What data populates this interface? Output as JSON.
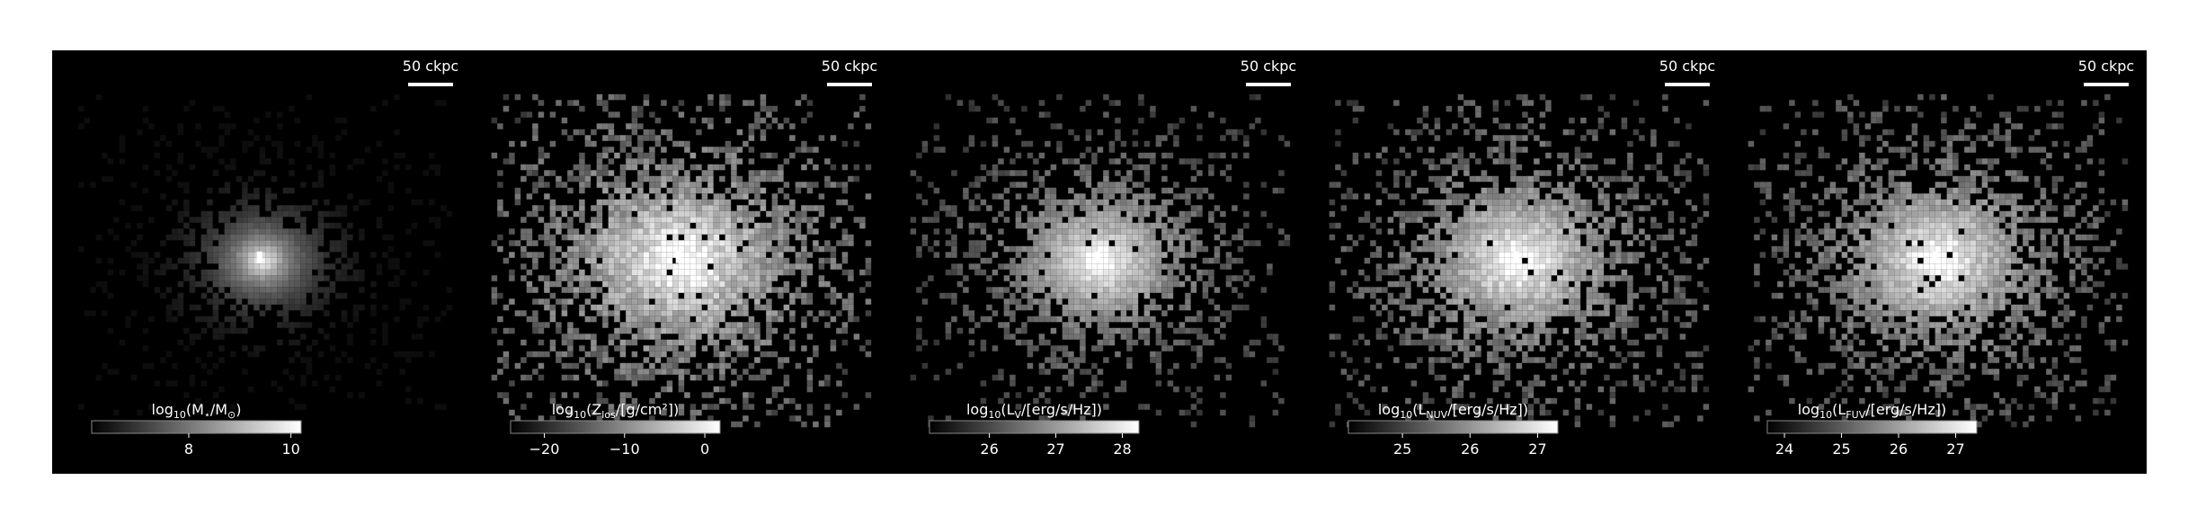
{
  "panels": [
    {
      "scale_label": "50 ckpc",
      "colorbar": {
        "label_parts": [
          "log",
          "10",
          "(M",
          "⋆",
          "/M",
          "⊙",
          ")"
        ],
        "clim": [
          6.1,
          10.2
        ],
        "ticks": [
          8,
          10
        ]
      }
    },
    {
      "scale_label": "50 ckpc",
      "colorbar": {
        "label_parts": [
          "log",
          "10",
          "(Z",
          "los",
          "/[g/cm²])"
        ],
        "clim": [
          -24.2,
          1.9
        ],
        "ticks": [
          {
            "value": -20,
            "label": "−20"
          },
          {
            "value": -10,
            "label": "−10"
          },
          0
        ]
      }
    },
    {
      "scale_label": "50 ckpc",
      "colorbar": {
        "label_parts": [
          "log",
          "10",
          "(L",
          "V",
          "/[erg/s/Hz])"
        ],
        "clim": [
          25.1,
          28.25
        ],
        "ticks": [
          26,
          27,
          28
        ]
      }
    },
    {
      "scale_label": "50 ckpc",
      "colorbar": {
        "label_parts": [
          "log",
          "10",
          "(L",
          "NUV",
          "/[erg/s/Hz])"
        ],
        "clim": [
          24.2,
          27.3
        ],
        "ticks": [
          25,
          26,
          27
        ]
      }
    },
    {
      "scale_label": "50 ckpc",
      "colorbar": {
        "label_parts": [
          "log",
          "10",
          "(L",
          "FUV",
          "/[erg/s/Hz])"
        ],
        "clim": [
          23.7,
          27.37
        ],
        "ticks": [
          24,
          25,
          26,
          27
        ]
      }
    }
  ]
}
